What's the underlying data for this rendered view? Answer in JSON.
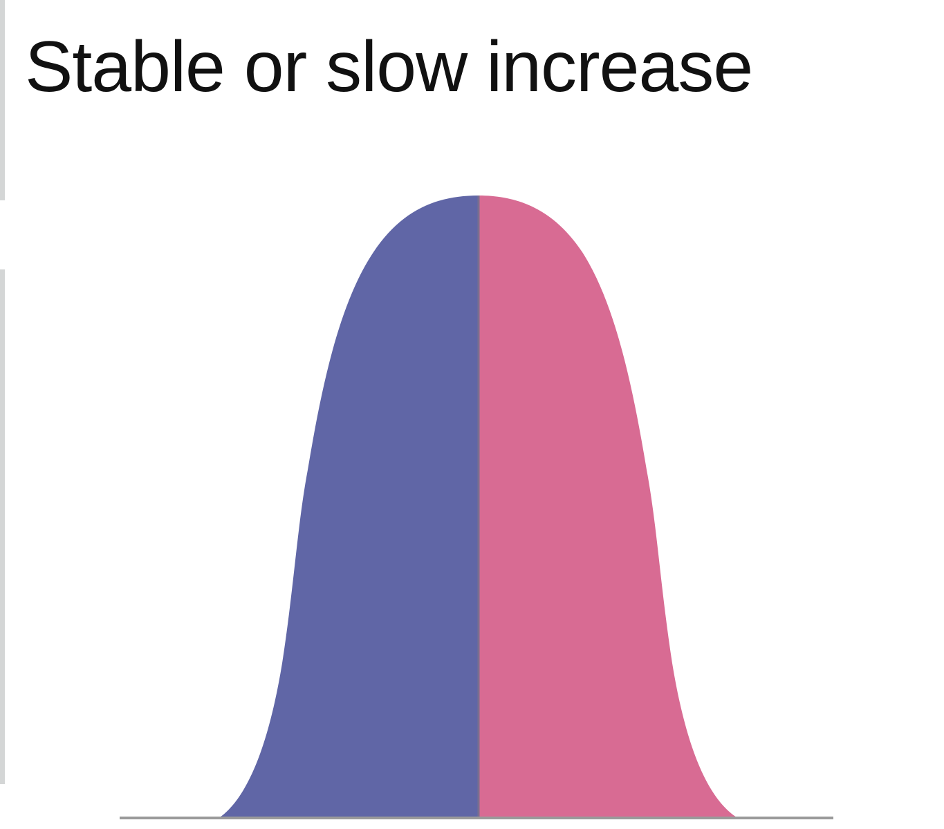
{
  "chart_data": {
    "type": "area",
    "title": "Stable or slow increase",
    "colors": {
      "left": "#6066a6",
      "right": "#d86b93",
      "baseline": "#9a9a9a",
      "divider": "#7a6f90"
    }
  }
}
